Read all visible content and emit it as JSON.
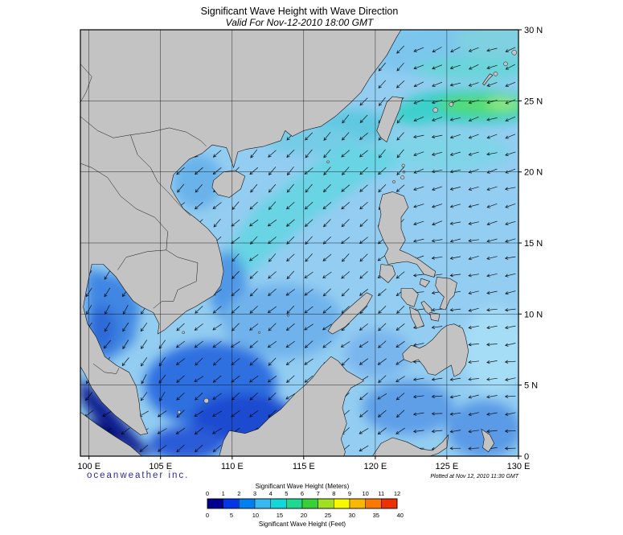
{
  "header": {
    "title": "Significant Wave Height with Wave Direction",
    "subtitle": "Valid For Nov-12-2010 18:00 GMT"
  },
  "map": {
    "lon_ticks": [
      "100 E",
      "105 E",
      "110 E",
      "115 E",
      "120 E",
      "125 E",
      "130 E"
    ],
    "lat_ticks": [
      "30 N",
      "25 N",
      "20 N",
      "15 N",
      "10 N",
      "5 N",
      "0"
    ],
    "extent": {
      "lon_min": 100,
      "lon_max": 130,
      "lat_min": 0,
      "lat_max": 30
    },
    "colors": {
      "land": "#c3c3c3",
      "ocean_base": "#93cdf1",
      "credit_text": "#2b2b9e"
    }
  },
  "colorbar": {
    "meters_label": "Significant Wave Height (Meters)",
    "feet_label": "Significant Wave Height (Feet)",
    "meters_ticks": [
      "0",
      "1",
      "2",
      "3",
      "4",
      "5",
      "6",
      "7",
      "8",
      "9",
      "10",
      "11",
      "12"
    ],
    "feet_ticks": [
      "0",
      "5",
      "10",
      "15",
      "20",
      "25",
      "30",
      "35",
      "40"
    ],
    "segment_colors": [
      "#000090",
      "#0038e8",
      "#0080f0",
      "#38b8f0",
      "#10d8d8",
      "#20d890",
      "#38d038",
      "#a0e020",
      "#f8f800",
      "#f8b800",
      "#f87800",
      "#f03000"
    ]
  },
  "footer": {
    "credit": "oceanweather inc.",
    "plotted": "Plotted at Nov 12, 2010 11:30 GMT"
  }
}
